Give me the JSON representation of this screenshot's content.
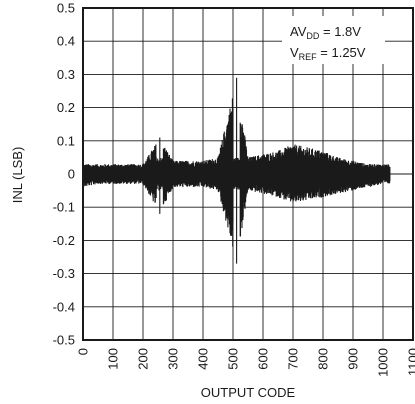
{
  "chart_data": {
    "type": "line",
    "xlabel": "OUTPUT CODE",
    "ylabel": "INL (LSB)",
    "xlim": [
      0,
      1100
    ],
    "ylim": [
      -0.5,
      0.5
    ],
    "x_ticks": [
      "0",
      "100",
      "200",
      "300",
      "400",
      "500",
      "600",
      "700",
      "800",
      "900",
      "1000",
      "1100"
    ],
    "y_ticks": [
      "0.5",
      "0.4",
      "0.3",
      "0.2",
      "0.1",
      "0",
      "-0.1",
      "-0.2",
      "-0.3",
      "-0.4",
      "-0.5"
    ],
    "grid": true,
    "annotation": {
      "line1_main": "AV",
      "line1_sub": "DD",
      "line1_rest": " = 1.8V",
      "line2_main": "V",
      "line2_sub": "REF",
      "line2_rest": " = 1.25V"
    },
    "series": [
      {
        "x": [
          0,
          50,
          100,
          150,
          200,
          256,
          300,
          350,
          400,
          450,
          512,
          550,
          600,
          650,
          700,
          750,
          800,
          850,
          900,
          950,
          1000,
          1023
        ],
        "y_upper": [
          0.03,
          0.03,
          0.03,
          0.03,
          0.03,
          0.11,
          0.04,
          0.04,
          0.04,
          0.05,
          0.29,
          0.05,
          0.06,
          0.07,
          0.09,
          0.08,
          0.07,
          0.05,
          0.04,
          0.03,
          0.03,
          0.03
        ],
        "y_lower": [
          -0.04,
          -0.03,
          -0.03,
          -0.03,
          -0.03,
          -0.12,
          -0.04,
          -0.04,
          -0.04,
          -0.05,
          -0.27,
          -0.05,
          -0.06,
          -0.07,
          -0.09,
          -0.08,
          -0.07,
          -0.06,
          -0.05,
          -0.04,
          -0.03,
          -0.03
        ]
      }
    ]
  }
}
